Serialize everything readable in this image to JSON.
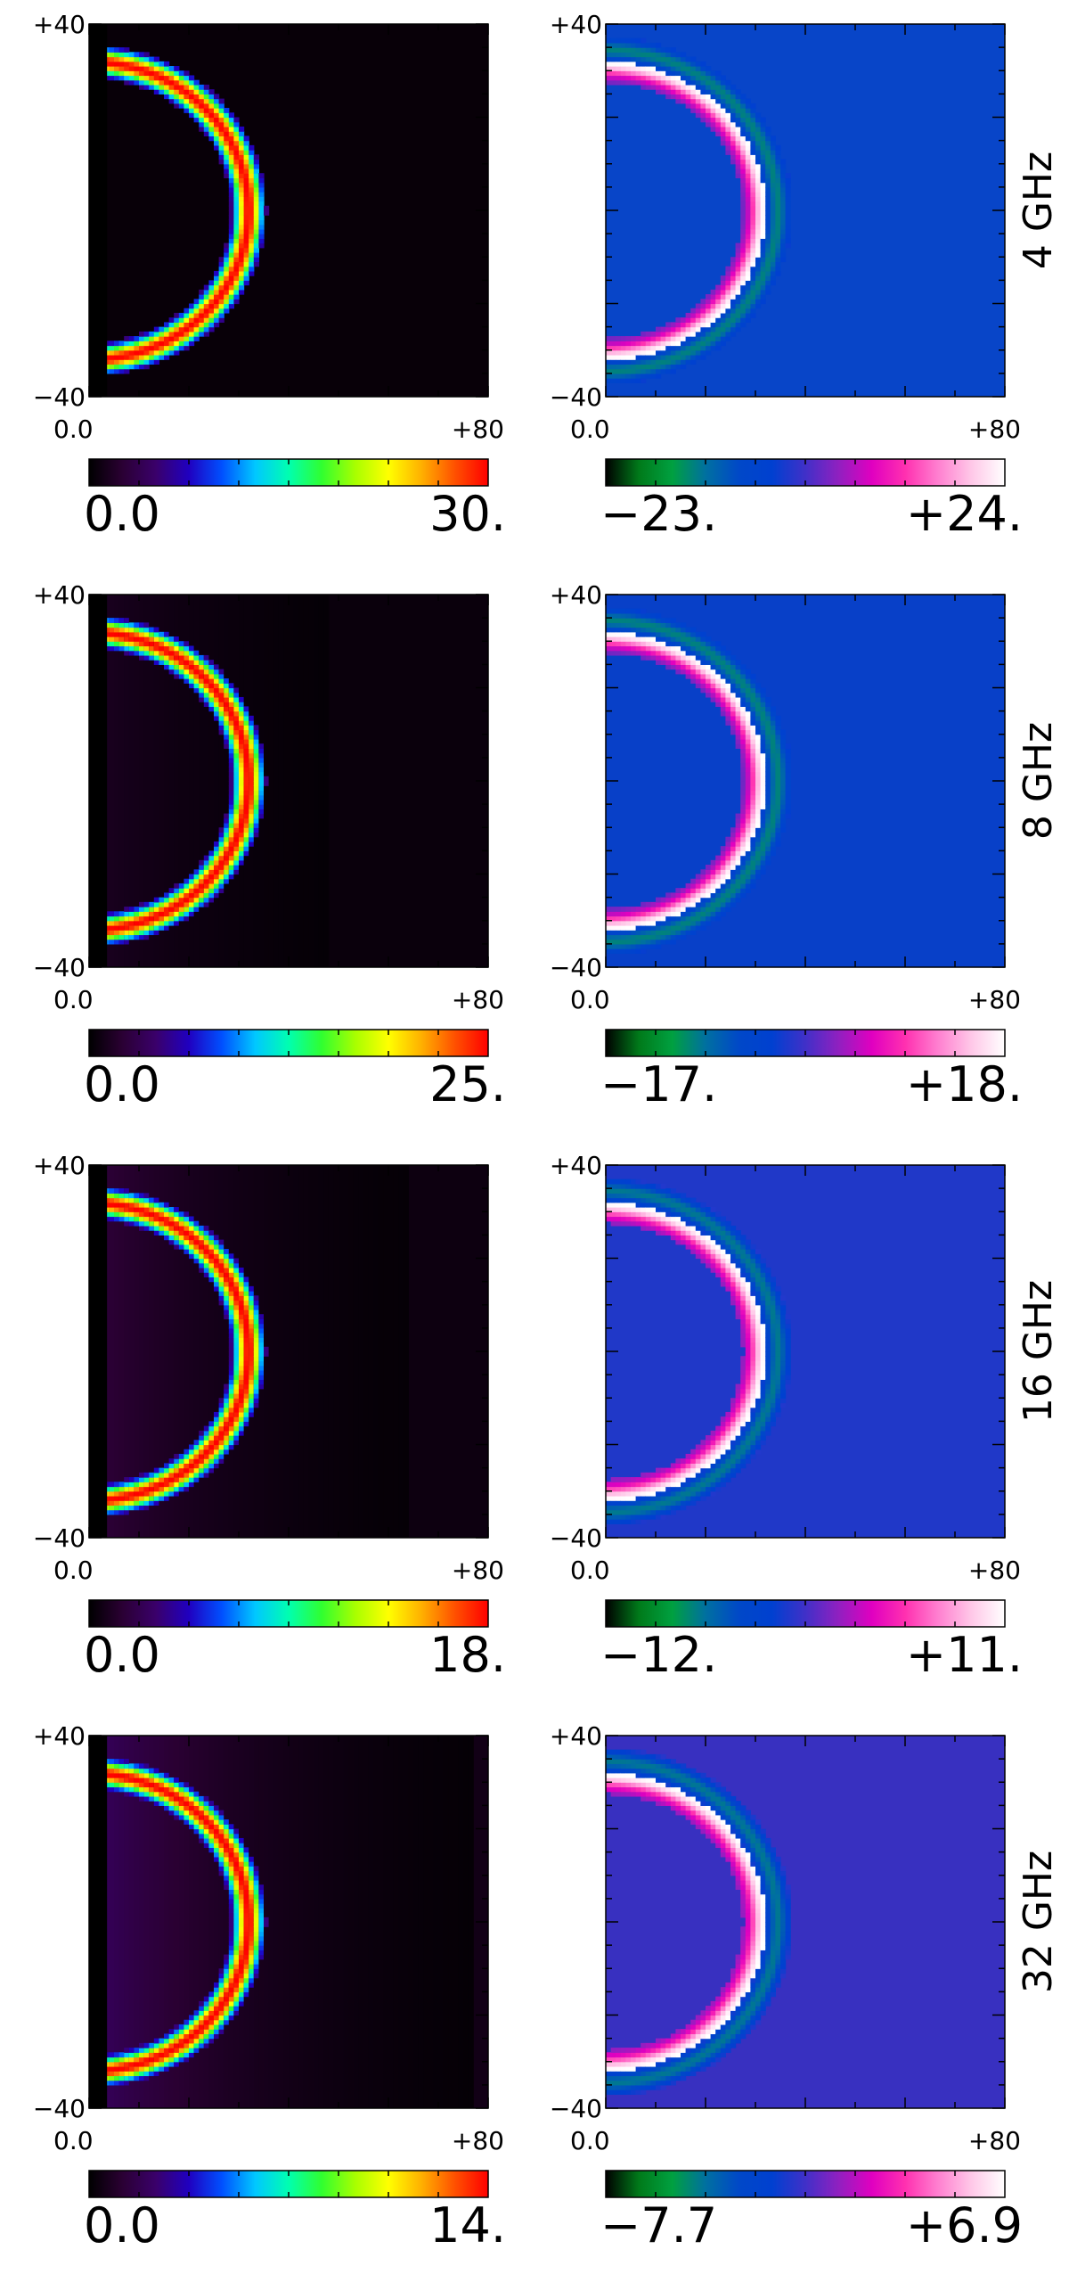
{
  "colormaps": {
    "intensity": [
      "#000000",
      "#2a0033",
      "#3a006a",
      "#2000c0",
      "#0050ff",
      "#00c8ff",
      "#00ffb0",
      "#30ff30",
      "#a8ff00",
      "#ffff00",
      "#ffb000",
      "#ff5000",
      "#ff0000"
    ],
    "difference": [
      "#000000",
      "#007a1a",
      "#00a040",
      "#0070a0",
      "#0048c8",
      "#0040d0",
      "#4030c8",
      "#9020c0",
      "#e000c0",
      "#ff30b0",
      "#ff80d0",
      "#ffc8e8",
      "#ffffff"
    ]
  },
  "chart_data": [
    {
      "type": "heatmap",
      "row": 0,
      "panel": "left",
      "xlim": [
        0,
        80
      ],
      "ylim": [
        -40,
        40
      ],
      "xticks": [
        "0.0",
        "+80"
      ],
      "yticks": [
        "+40",
        "-40"
      ],
      "colorbar": {
        "min": 0,
        "max": 30,
        "min_label": "0.0",
        "max_label": "30.",
        "cmap": "intensity"
      },
      "ring": {
        "peak": 30,
        "radius": 40,
        "halo": 0
      },
      "background": "#080008"
    },
    {
      "type": "heatmap",
      "row": 0,
      "panel": "right",
      "xlim": [
        0,
        80
      ],
      "ylim": [
        -40,
        40
      ],
      "xticks": [
        "0.0",
        "+80"
      ],
      "yticks": [
        "+40",
        "-40"
      ],
      "colorbar": {
        "min": -23,
        "max": 24,
        "min_label": "-23.",
        "max_label": "+24.",
        "cmap": "difference"
      },
      "background": "#0845c8",
      "side_label": "4 GHz"
    },
    {
      "type": "heatmap",
      "row": 1,
      "panel": "left",
      "xlim": [
        0,
        80
      ],
      "ylim": [
        -40,
        40
      ],
      "xticks": [
        "0.0",
        "+80"
      ],
      "yticks": [
        "+40",
        "-40"
      ],
      "colorbar": {
        "min": 0,
        "max": 25,
        "min_label": "0.0",
        "max_label": "25.",
        "cmap": "intensity"
      },
      "ring": {
        "peak": 25,
        "radius": 40,
        "halo": 0.25
      },
      "background": "#0a000c"
    },
    {
      "type": "heatmap",
      "row": 1,
      "panel": "right",
      "xlim": [
        0,
        80
      ],
      "ylim": [
        -40,
        40
      ],
      "xticks": [
        "0.0",
        "+80"
      ],
      "yticks": [
        "+40",
        "-40"
      ],
      "colorbar": {
        "min": -17,
        "max": 18,
        "min_label": "-17.",
        "max_label": "+18.",
        "cmap": "difference"
      },
      "background": "#0840c8",
      "side_label": "8 GHz"
    },
    {
      "type": "heatmap",
      "row": 2,
      "panel": "left",
      "xlim": [
        0,
        80
      ],
      "ylim": [
        -40,
        40
      ],
      "xticks": [
        "0.0",
        "+80"
      ],
      "yticks": [
        "+40",
        "-40"
      ],
      "colorbar": {
        "min": 0,
        "max": 18,
        "min_label": "0.0",
        "max_label": "18.",
        "cmap": "intensity"
      },
      "ring": {
        "peak": 18,
        "radius": 40,
        "halo": 0.45
      },
      "background": "#0d0010"
    },
    {
      "type": "heatmap",
      "row": 2,
      "panel": "right",
      "xlim": [
        0,
        80
      ],
      "ylim": [
        -40,
        40
      ],
      "xticks": [
        "0.0",
        "+80"
      ],
      "yticks": [
        "+40",
        "-40"
      ],
      "colorbar": {
        "min": -12,
        "max": 11,
        "min_label": "-12.",
        "max_label": "+11.",
        "cmap": "difference"
      },
      "background": "#2038c8",
      "side_label": "16 GHz"
    },
    {
      "type": "heatmap",
      "row": 3,
      "panel": "left",
      "xlim": [
        0,
        80
      ],
      "ylim": [
        -40,
        40
      ],
      "xticks": [
        "0.0",
        "+80"
      ],
      "yticks": [
        "+40",
        "-40"
      ],
      "colorbar": {
        "min": 0,
        "max": 14,
        "min_label": "0.0",
        "max_label": "14.",
        "cmap": "intensity"
      },
      "ring": {
        "peak": 14,
        "radius": 40,
        "halo": 0.7
      },
      "background": "#120016"
    },
    {
      "type": "heatmap",
      "row": 3,
      "panel": "right",
      "xlim": [
        0,
        80
      ],
      "ylim": [
        -40,
        40
      ],
      "xticks": [
        "0.0",
        "+80"
      ],
      "yticks": [
        "+40",
        "-40"
      ],
      "colorbar": {
        "min": -7.7,
        "max": 6.9,
        "min_label": "-7.7",
        "max_label": "+6.9",
        "cmap": "difference"
      },
      "background": "#3830c0",
      "side_label": "32 GHz"
    }
  ]
}
